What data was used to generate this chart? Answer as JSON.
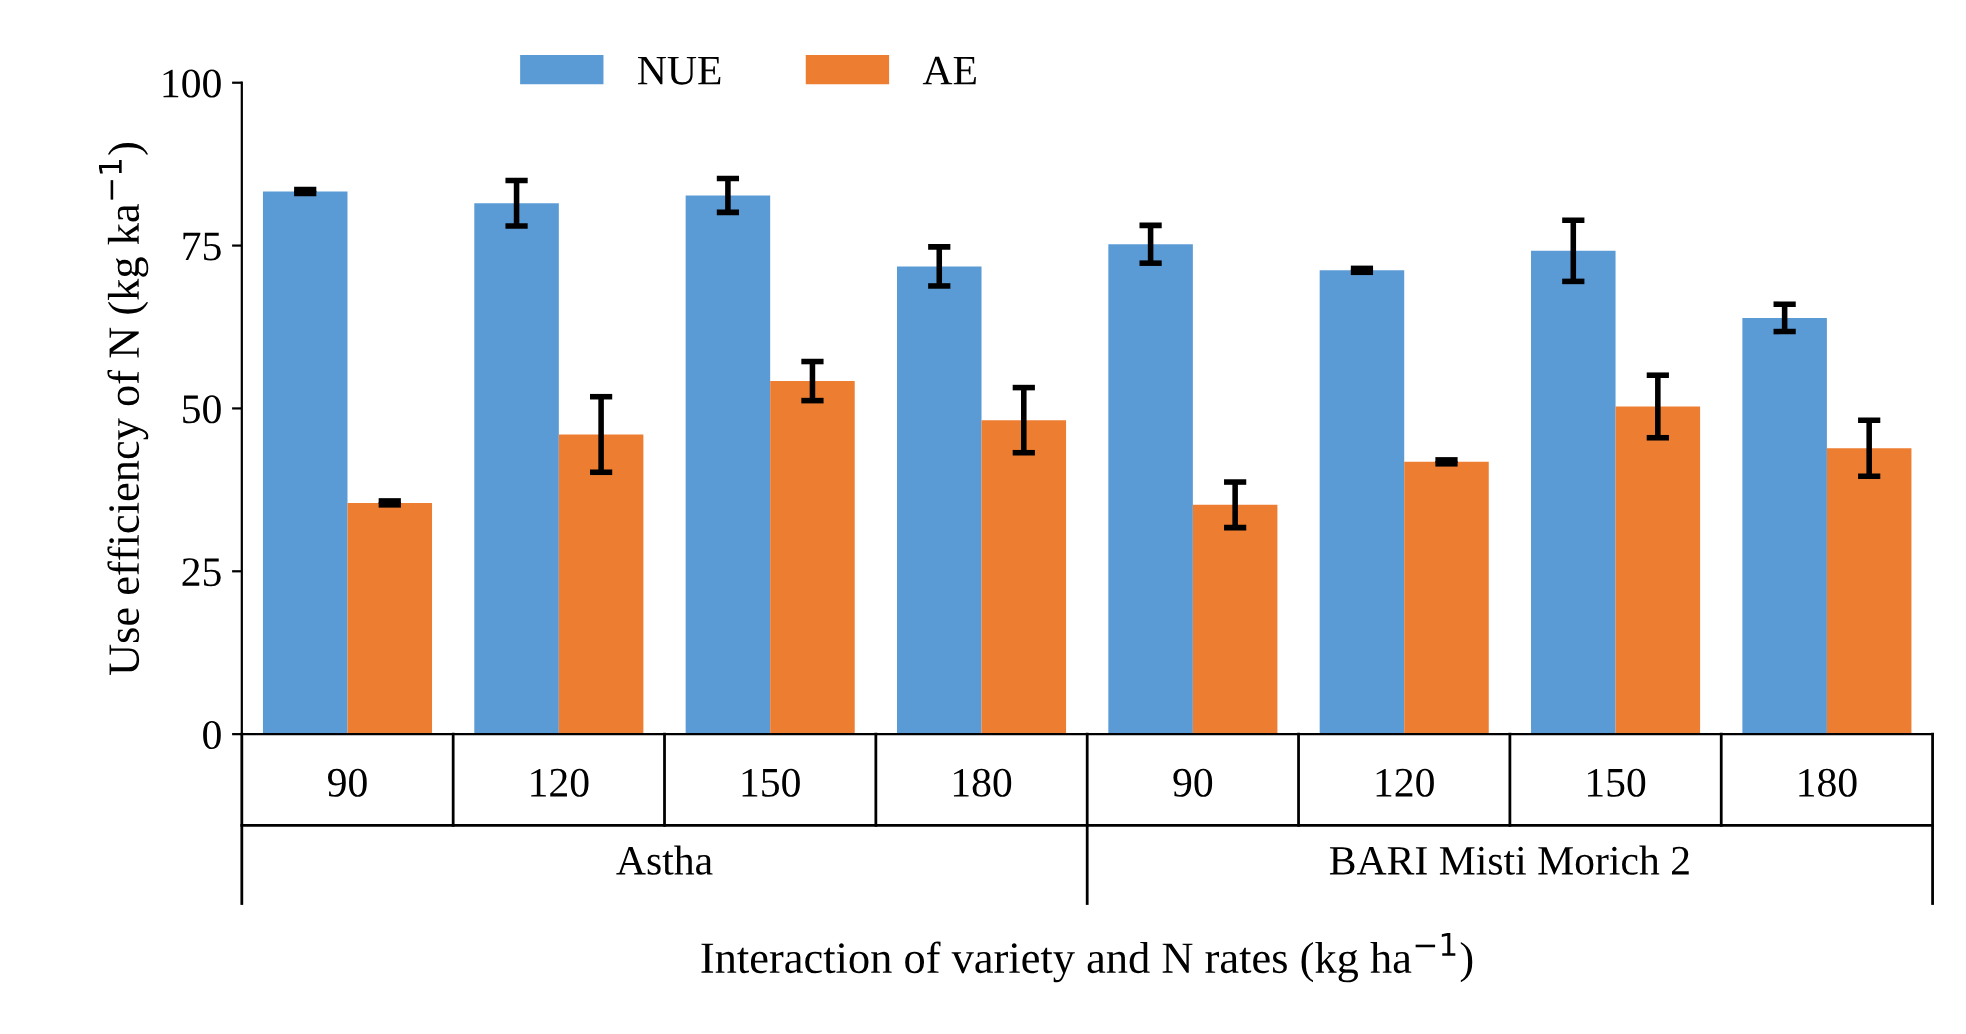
{
  "chart_data": {
    "type": "bar",
    "xlabel": "Interaction of variety and N rates (kg ha$^{−1}$)",
    "ylabel": "Use efficiency of N (kg ka$^{−1}$)",
    "categories": [
      "90",
      "120",
      "150",
      "180",
      "90",
      "120",
      "150",
      "180"
    ],
    "annotations": [
      "Astha",
      "BARI Misti Morich 2"
    ],
    "series": [
      {
        "name": "NUE",
        "color": "#5b9bd5",
        "values": [
          83.3,
          81.5,
          82.7,
          71.8,
          75.2,
          71.2,
          74.2,
          63.9
        ],
        "errors": [
          0.3,
          3.5,
          2.6,
          3.0,
          2.9,
          0.3,
          4.7,
          2.1
        ]
      },
      {
        "name": "AE",
        "color": "#ed7d31",
        "values": [
          35.5,
          46.0,
          54.2,
          48.2,
          35.2,
          41.8,
          50.3,
          43.9
        ],
        "errors": [
          0.3,
          5.8,
          3.0,
          5.0,
          3.5,
          0.3,
          4.8,
          4.3
        ]
      }
    ],
    "ylim": [
      0,
      100
    ],
    "yticks": [
      0,
      25,
      50,
      75,
      100
    ],
    "grid": false,
    "legend": "top"
  }
}
